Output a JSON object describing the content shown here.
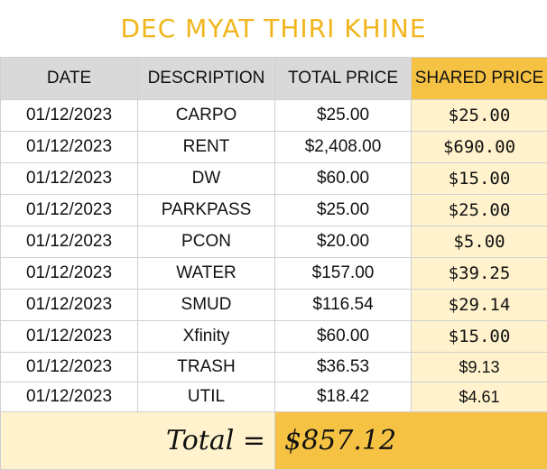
{
  "title": "DEC MYAT THIRI KHINE",
  "columns": [
    "DATE",
    "DESCRIPTION",
    "TOTAL PRICE",
    "SHARED PRICE"
  ],
  "rows": [
    {
      "date": "01/12/2023",
      "description": "CARPO",
      "total": "$25.00",
      "shared": "$25.00"
    },
    {
      "date": "01/12/2023",
      "description": "RENT",
      "total": "$2,408.00",
      "shared": "$690.00"
    },
    {
      "date": "01/12/2023",
      "description": "DW",
      "total": "$60.00",
      "shared": "$15.00"
    },
    {
      "date": "01/12/2023",
      "description": "PARKPASS",
      "total": "$25.00",
      "shared": "$25.00"
    },
    {
      "date": "01/12/2023",
      "description": "PCON",
      "total": "$20.00",
      "shared": "$5.00"
    },
    {
      "date": "01/12/2023",
      "description": "WATER",
      "total": "$157.00",
      "shared": "$39.25"
    },
    {
      "date": "01/12/2023",
      "description": "SMUD",
      "total": "$116.54",
      "shared": "$29.14"
    },
    {
      "date": "01/12/2023",
      "description": "Xfinity",
      "total": "$60.00",
      "shared": "$15.00"
    },
    {
      "date": "01/12/2023",
      "description": "TRASH",
      "total": "$36.53",
      "shared": "$9.13"
    },
    {
      "date": "01/12/2023",
      "description": "UTIL",
      "total": "$18.42",
      "shared": "$4.61"
    }
  ],
  "total": {
    "label": "Total =",
    "value": "$857.12"
  },
  "colors": {
    "title": "#f1b51c",
    "header_gray": "#d9d9d9",
    "shared_header": "#f6c244",
    "shared_cell": "#fff2cc"
  }
}
